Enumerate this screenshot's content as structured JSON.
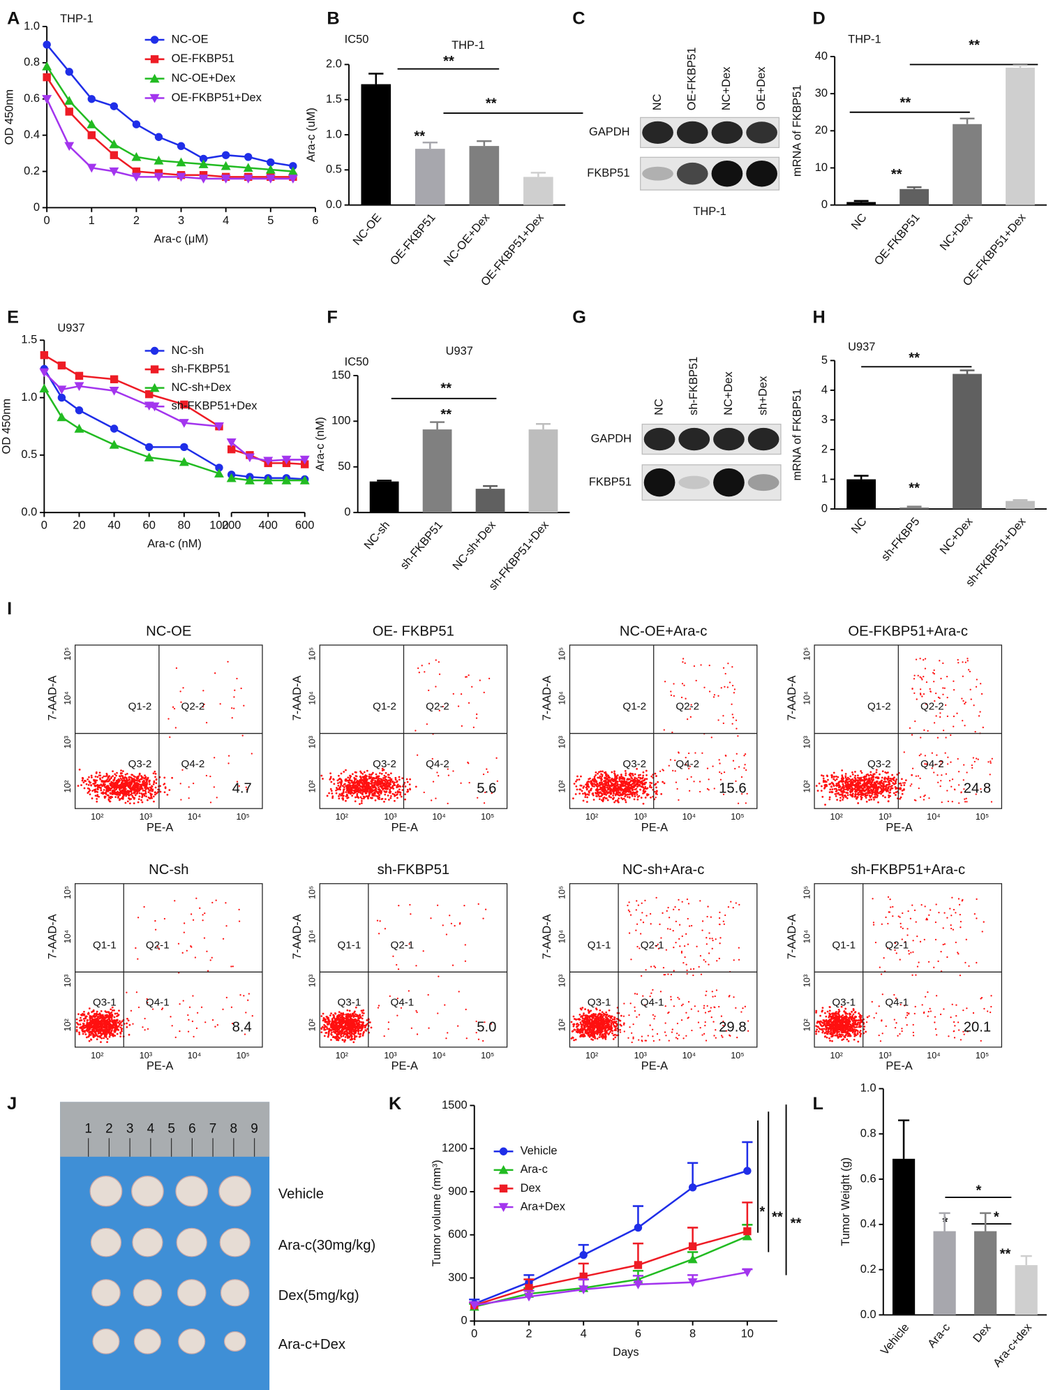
{
  "panel_labels": [
    "A",
    "B",
    "C",
    "D",
    "E",
    "F",
    "G",
    "H",
    "I",
    "J",
    "K",
    "L"
  ],
  "chart_data": [
    {
      "type": "line",
      "title": "THP-1",
      "xlabel": "Ara-c (μM)",
      "ylabel": "OD 450nm",
      "x": [
        0,
        0.5,
        1,
        1.5,
        2,
        2.5,
        3,
        3.5,
        4,
        4.5,
        5,
        5.5
      ],
      "xlim": [
        0,
        6
      ],
      "xticks": [
        0,
        1,
        2,
        3,
        4,
        5,
        6
      ],
      "ylim": [
        0,
        1
      ],
      "yticks": [
        0,
        0.2,
        0.4,
        0.6,
        0.8,
        {
          "value": 1,
          "label": "1.0"
        }
      ],
      "series": [
        {
          "name": "NC-OE",
          "color": "#1f2ee8",
          "marker": "circle",
          "values": [
            0.9,
            0.75,
            0.6,
            0.56,
            0.46,
            0.39,
            0.34,
            0.27,
            0.29,
            0.28,
            0.25,
            0.23
          ]
        },
        {
          "name": "OE-FKBP51",
          "color": "#ee1c25",
          "marker": "square",
          "values": [
            0.72,
            0.53,
            0.4,
            0.29,
            0.2,
            0.19,
            0.18,
            0.18,
            0.17,
            0.17,
            0.17,
            0.17
          ]
        },
        {
          "name": "NC-OE+Dex",
          "color": "#22bb22",
          "marker": "triangle",
          "values": [
            0.78,
            0.59,
            0.46,
            0.35,
            0.28,
            0.26,
            0.25,
            0.24,
            0.23,
            0.22,
            0.21,
            0.2
          ]
        },
        {
          "name": "OE-FKBP51+Dex",
          "color": "#a335ee",
          "marker": "triangle-down",
          "values": [
            0.6,
            0.34,
            0.22,
            0.2,
            0.17,
            0.17,
            0.17,
            0.16,
            0.16,
            0.16,
            0.16,
            0.16
          ]
        }
      ]
    },
    {
      "type": "bar",
      "title": "THP-1",
      "subtitle": "IC50",
      "ylabel": "Ara-c (uM)",
      "categories": [
        "NC-OE",
        "OE-FKBP51",
        "NC-OE+Dex",
        "OE-FKBP51+Dex"
      ],
      "values": [
        1.72,
        0.8,
        0.84,
        0.4
      ],
      "errors": [
        0.15,
        0.09,
        0.07,
        0.06
      ],
      "colors": [
        "#000000",
        "#a7a7ad",
        "#7f7f7f",
        "#cfcfcf"
      ],
      "ylim": [
        0,
        2
      ],
      "yticks": [
        {
          "value": 0,
          "label": "0.0"
        },
        0.5,
        {
          "value": 1,
          "label": "1.0"
        },
        1.5,
        {
          "value": 2,
          "label": "2.0"
        }
      ],
      "annotations": [
        "**",
        "**",
        "**"
      ]
    },
    {
      "type": "bar",
      "title": "THP-1",
      "ylabel": "mRNA of FKBP51",
      "categories": [
        "NC",
        "OE-FKBP51",
        "NC+Dex",
        "OE-FKBP51+Dex"
      ],
      "values": [
        0.8,
        4.3,
        21.8,
        37
      ],
      "errors": [
        0.3,
        0.5,
        1.5,
        0.6
      ],
      "colors": [
        "#000000",
        "#606060",
        "#808080",
        "#cfcfcf"
      ],
      "ylim": [
        0,
        40
      ],
      "yticks": [
        0,
        10,
        20,
        30,
        40
      ],
      "annotations": [
        "**",
        "**",
        "**"
      ]
    },
    {
      "type": "line",
      "title": "U937",
      "xlabel": "Ara-c (nM)",
      "ylabel": "OD 450nm",
      "x": [
        0,
        10,
        20,
        40,
        60,
        80,
        100,
        200,
        300,
        400,
        500,
        600
      ],
      "xlim": [
        [
          0,
          100
        ],
        [
          200,
          600
        ]
      ],
      "xticks": [
        0,
        20,
        40,
        60,
        80,
        100,
        200,
        400,
        600
      ],
      "ylim": [
        0,
        1.5
      ],
      "yticks": [
        {
          "value": 0,
          "label": "0.0"
        },
        0.5,
        {
          "value": 1,
          "label": "1.0"
        },
        1.5
      ],
      "series": [
        {
          "name": "NC-sh",
          "color": "#1f2ee8",
          "marker": "circle",
          "values": [
            1.25,
            1,
            0.89,
            0.73,
            0.57,
            0.57,
            0.39,
            0.33,
            0.31,
            0.3,
            0.3,
            0.29
          ]
        },
        {
          "name": "sh-FKBP51",
          "color": "#ee1c25",
          "marker": "square",
          "values": [
            1.37,
            1.28,
            1.19,
            1.16,
            1.03,
            0.94,
            0.75,
            0.55,
            0.5,
            0.43,
            0.43,
            0.42
          ]
        },
        {
          "name": "NC-sh+Dex",
          "color": "#22bb22",
          "marker": "triangle",
          "values": [
            1.08,
            0.83,
            0.73,
            0.59,
            0.48,
            0.44,
            0.34,
            0.3,
            0.28,
            0.28,
            0.28,
            0.28
          ]
        },
        {
          "name": "sh-FKBP51+Dex",
          "color": "#a335ee",
          "marker": "triangle-down",
          "values": [
            1.22,
            1.07,
            1.1,
            1.06,
            0.93,
            0.78,
            0.75,
            0.61,
            0.48,
            0.45,
            0.46,
            0.46
          ]
        }
      ]
    },
    {
      "type": "bar",
      "title": "U937",
      "subtitle": "IC50",
      "ylabel": "Ara-c (nM)",
      "categories": [
        "NC-sh",
        "sh-FKBP51",
        "NC-sh+Dex",
        "sh-FKBP51+Dex"
      ],
      "values": [
        34,
        91,
        26,
        91
      ],
      "errors": [
        1,
        8,
        3,
        6
      ],
      "colors": [
        "#000000",
        "#808080",
        "#606060",
        "#bdbdbd"
      ],
      "ylim": [
        0,
        150
      ],
      "yticks": [
        0,
        50,
        100,
        150
      ],
      "annotations": [
        "**",
        "**"
      ]
    },
    {
      "type": "bar",
      "title": "U937",
      "ylabel": "mRNA of FKBP51",
      "categories": [
        "NC",
        "sh-FKBP5",
        "NC+Dex",
        "sh-FKBP51+Dex"
      ],
      "values": [
        1,
        0.05,
        4.55,
        0.27
      ],
      "errors": [
        0.12,
        0.03,
        0.12,
        0.03
      ],
      "colors": [
        "#000000",
        "#808080",
        "#606060",
        "#bdbdbd"
      ],
      "ylim": [
        0,
        5
      ],
      "yticks": [
        0,
        1,
        2,
        3,
        4,
        5
      ],
      "annotations": [
        "**",
        "**"
      ]
    },
    {
      "type": "line",
      "xlabel": "Days",
      "ylabel": "Tumor volume (mm³)",
      "x": [
        0,
        2,
        4,
        6,
        8,
        10
      ],
      "xlim": [
        0,
        10
      ],
      "xticks": [
        0,
        2,
        4,
        6,
        8,
        10
      ],
      "ylim": [
        0,
        1500
      ],
      "yticks": [
        0,
        300,
        600,
        900,
        1200,
        1500
      ],
      "series": [
        {
          "name": "Vehicle",
          "color": "#1f2ee8",
          "marker": "circle",
          "values": [
            120,
            270,
            460,
            650,
            930,
            1045
          ],
          "errors": [
            30,
            50,
            70,
            150,
            170,
            200
          ]
        },
        {
          "name": "Ara-c",
          "color": "#22bb22",
          "marker": "triangle",
          "values": [
            100,
            190,
            230,
            290,
            430,
            590
          ],
          "errors": [
            20,
            40,
            60,
            60,
            50,
            80
          ]
        },
        {
          "name": "Dex",
          "color": "#ee1c25",
          "marker": "square",
          "values": [
            110,
            230,
            310,
            390,
            520,
            625
          ],
          "errors": [
            20,
            60,
            90,
            150,
            130,
            200
          ]
        },
        {
          "name": "Ara+Dex",
          "color": "#a335ee",
          "marker": "triangle-down",
          "values": [
            110,
            170,
            220,
            255,
            270,
            340
          ],
          "errors": [
            20,
            40,
            70,
            60,
            50,
            20
          ]
        }
      ],
      "annotations": [
        "*",
        "**",
        "**"
      ]
    },
    {
      "type": "bar",
      "ylabel": "Tumor Weight (g)",
      "categories": [
        "Vehicle",
        "Ara-c",
        "Dex",
        "Ara-c+dex"
      ],
      "values": [
        0.69,
        0.37,
        0.37,
        0.22
      ],
      "errors": [
        0.17,
        0.08,
        0.08,
        0.04
      ],
      "colors": [
        "#000000",
        "#a7a7ad",
        "#7f7f7f",
        "#cfcfcf"
      ],
      "ylim": [
        0,
        1
      ],
      "yticks": [
        {
          "value": 0,
          "label": "0.0"
        },
        0.2,
        0.4,
        0.6,
        0.8,
        {
          "value": 1,
          "label": "1.0"
        }
      ],
      "annotations": [
        "*",
        "*",
        "*",
        "**"
      ]
    }
  ],
  "blots": [
    {
      "lanes": [
        "NC",
        "OE-FKBP51",
        "NC+Dex",
        "OE+Dex"
      ],
      "rows": [
        "GAPDH",
        "FKBP51"
      ],
      "caption": "THP-1"
    },
    {
      "lanes": [
        "NC",
        "sh-FKBP51",
        "NC+Dex",
        "sh+Dex"
      ],
      "rows": [
        "GAPDH",
        "FKBP51"
      ]
    }
  ],
  "flow": {
    "xlabel": "PE-A",
    "ylabel": "7-AAD-A",
    "xticks": [
      "10²",
      "10³",
      "10⁴",
      "10⁵"
    ],
    "yticks": [
      "10²",
      "10³",
      "10⁴",
      "10⁵"
    ],
    "plots": [
      {
        "title": "NC-OE",
        "quadrants": [
          "Q1-2",
          "Q2-2",
          "Q3-2",
          "Q4-2"
        ],
        "percent": "4.7"
      },
      {
        "title": "OE- FKBP51",
        "quadrants": [
          "Q1-2",
          "Q2-2",
          "Q3-2",
          "Q4-2"
        ],
        "percent": "5.6"
      },
      {
        "title": "NC-OE+Ara-c",
        "quadrants": [
          "Q1-2",
          "Q2-2",
          "Q3-2",
          "Q4-2"
        ],
        "percent": "15.6"
      },
      {
        "title": "OE-FKBP51+Ara-c",
        "quadrants": [
          "Q1-2",
          "Q2-2",
          "Q3-2",
          "Q4-2"
        ],
        "percent": "24.8"
      },
      {
        "title": "NC-sh",
        "quadrants": [
          "Q1-1",
          "Q2-1",
          "Q3-1",
          "Q4-1"
        ],
        "percent": "8.4"
      },
      {
        "title": "sh-FKBP51",
        "quadrants": [
          "Q1-1",
          "Q2-1",
          "Q3-1",
          "Q4-1"
        ],
        "percent": "5.0"
      },
      {
        "title": "NC-sh+Ara-c",
        "quadrants": [
          "Q1-1",
          "Q2-1",
          "Q3-1",
          "Q4-1"
        ],
        "percent": "29.8"
      },
      {
        "title": "sh-FKBP51+Ara-c",
        "quadrants": [
          "Q1-1",
          "Q2-1",
          "Q3-1",
          "Q4-1"
        ],
        "percent": "20.1"
      }
    ]
  },
  "photo": {
    "ruler": [
      "1",
      "2",
      "3",
      "4",
      "5",
      "6",
      "7",
      "8",
      "9"
    ],
    "groups": [
      "Vehicle",
      "Ara-c(30mg/kg)",
      "Dex(5mg/kg)",
      "Ara-c+Dex"
    ]
  }
}
